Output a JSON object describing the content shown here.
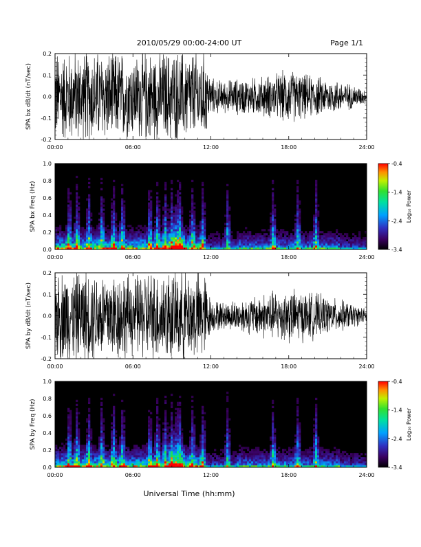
{
  "header": {
    "title": "2010/05/29  00:00-24:00 UT",
    "page": "Page 1/1"
  },
  "xaxis_label": "Universal Time (hh:mm)",
  "chart_data": [
    {
      "type": "line",
      "ylabel": "SPA bx dB/dt (nT/sec)",
      "xticks": [
        "00:00",
        "06:00",
        "12:00",
        "18:00",
        "24:00"
      ],
      "xlim": [
        0,
        24
      ],
      "ylim": [
        -0.2,
        0.2
      ],
      "yticks": [
        "-0.2",
        "-0.1",
        "0.0",
        "0.1",
        "0.2"
      ],
      "envelope": {
        "x": [
          0,
          1,
          2,
          3,
          4,
          5,
          6,
          7,
          8,
          9,
          10,
          11,
          11.5,
          12,
          13,
          14,
          15,
          16,
          17,
          18,
          19,
          20,
          21,
          22,
          23,
          24
        ],
        "amplitude": [
          0.2,
          0.2,
          0.2,
          0.2,
          0.2,
          0.2,
          0.18,
          0.2,
          0.2,
          0.2,
          0.2,
          0.2,
          0.2,
          0.08,
          0.07,
          0.08,
          0.08,
          0.09,
          0.1,
          0.12,
          0.1,
          0.09,
          0.08,
          0.07,
          0.05,
          0.03
        ]
      }
    },
    {
      "type": "heatmap",
      "ylabel": "SPA bx Freq (Hz)",
      "xticks": [
        "00:00",
        "06:00",
        "12:00",
        "18:00",
        "24:00"
      ],
      "xlim": [
        0,
        24
      ],
      "ylim": [
        0,
        1.0
      ],
      "yticks": [
        "0.0",
        "0.2",
        "0.4",
        "0.6",
        "0.8",
        "1.0"
      ],
      "colorbar": {
        "label": "Log₁₀ Power",
        "ticks": [
          "-0.4",
          "-1.4",
          "-2.4",
          "-3.4"
        ],
        "range": [
          -3.4,
          -0.4
        ]
      },
      "hotspots_hour": [
        1.1,
        1.7,
        2.6,
        3.6,
        4.5,
        5.2,
        7.3,
        7.9,
        8.5,
        9.0,
        9.4,
        9.6,
        10.6,
        11.4,
        13.3,
        16.8,
        18.7,
        20.1
      ]
    },
    {
      "type": "line",
      "ylabel": "SPA by dB/dt (nT/sec)",
      "xticks": [
        "00:00",
        "06:00",
        "12:00",
        "18:00",
        "24:00"
      ],
      "xlim": [
        0,
        24
      ],
      "ylim": [
        -0.2,
        0.2
      ],
      "yticks": [
        "-0.2",
        "-0.1",
        "0.0",
        "0.1",
        "0.2"
      ],
      "envelope": {
        "x": [
          0,
          1,
          2,
          3,
          4,
          5,
          6,
          7,
          8,
          9,
          10,
          11,
          11.5,
          12,
          13,
          14,
          15,
          16,
          17,
          18,
          19,
          20,
          21,
          22,
          23,
          24
        ],
        "amplitude": [
          0.2,
          0.2,
          0.2,
          0.2,
          0.2,
          0.2,
          0.17,
          0.2,
          0.2,
          0.2,
          0.2,
          0.2,
          0.2,
          0.07,
          0.06,
          0.07,
          0.08,
          0.1,
          0.11,
          0.12,
          0.11,
          0.1,
          0.08,
          0.07,
          0.05,
          0.03
        ]
      }
    },
    {
      "type": "heatmap",
      "ylabel": "SPA by Freq (Hz)",
      "xticks": [
        "00:00",
        "06:00",
        "12:00",
        "18:00",
        "24:00"
      ],
      "xlim": [
        0,
        24
      ],
      "ylim": [
        0,
        1.0
      ],
      "yticks": [
        "0.0",
        "0.2",
        "0.4",
        "0.6",
        "0.8",
        "1.0"
      ],
      "colorbar": {
        "label": "Log₁₀ Power",
        "ticks": [
          "-0.4",
          "-1.4",
          "-2.4",
          "-3.4"
        ],
        "range": [
          -3.4,
          -0.4
        ]
      },
      "hotspots_hour": [
        1.1,
        1.7,
        2.6,
        3.6,
        4.5,
        5.2,
        7.3,
        7.9,
        8.5,
        9.0,
        9.4,
        9.6,
        10.6,
        11.4,
        13.3,
        16.8,
        18.7,
        20.1
      ]
    }
  ]
}
